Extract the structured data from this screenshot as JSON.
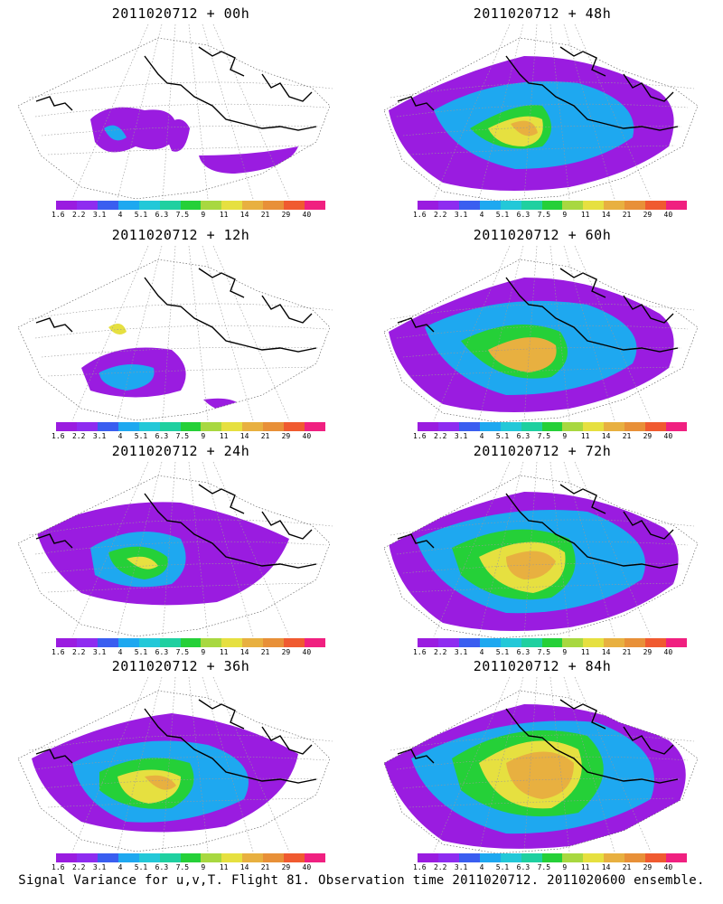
{
  "panels": [
    {
      "title": "2011020712 + 00h"
    },
    {
      "title": "2011020712 + 48h"
    },
    {
      "title": "2011020712 + 12h"
    },
    {
      "title": "2011020712 + 60h"
    },
    {
      "title": "2011020712 + 24h"
    },
    {
      "title": "2011020712 + 72h"
    },
    {
      "title": "2011020712 + 36h"
    },
    {
      "title": "2011020712 + 84h"
    }
  ],
  "colorbar": {
    "colors": [
      "#9a1ce0",
      "#8e2cf0",
      "#3a5ef0",
      "#1ea8f0",
      "#23c8d8",
      "#1fd0a0",
      "#25d038",
      "#a8d840",
      "#e6e040",
      "#e8b040",
      "#e89038",
      "#f05a30",
      "#f02080"
    ],
    "labels": [
      "1.6",
      "2.2",
      "3.1",
      "4",
      "5.1",
      "6.3",
      "7.5",
      "9",
      "11",
      "14",
      "21",
      "29",
      "40"
    ]
  },
  "caption": "Signal Variance for u,v,T. Flight 81. Observation time 2011020712. 2011020600 ensemble."
}
